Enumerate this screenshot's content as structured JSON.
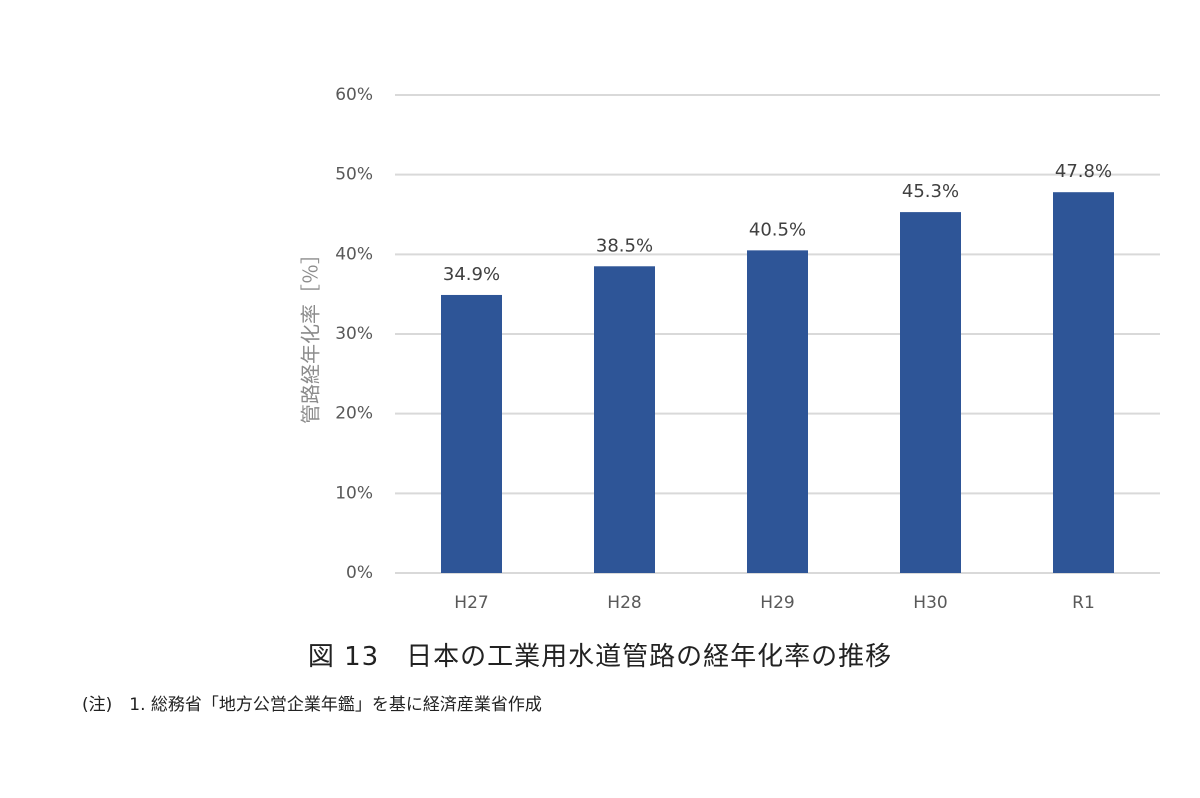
{
  "chart_data": {
    "type": "bar",
    "categories": [
      "H27",
      "H28",
      "H29",
      "H30",
      "R1"
    ],
    "values": [
      34.9,
      38.5,
      40.5,
      45.3,
      47.8
    ],
    "data_labels": [
      "34.9%",
      "38.5%",
      "40.5%",
      "45.3%",
      "47.8%"
    ],
    "ylabel": "管路経年化率［％］",
    "ylim": [
      0,
      60
    ],
    "yticks": [
      "0%",
      "10%",
      "20%",
      "30%",
      "40%",
      "50%",
      "60%"
    ],
    "grid": true,
    "bar_color": "#2e5597"
  },
  "caption": "図 13　日本の工業用水道管路の経年化率の推移",
  "note": "(注)　1. 総務省「地方公営企業年鑑」を基に経済産業省作成"
}
